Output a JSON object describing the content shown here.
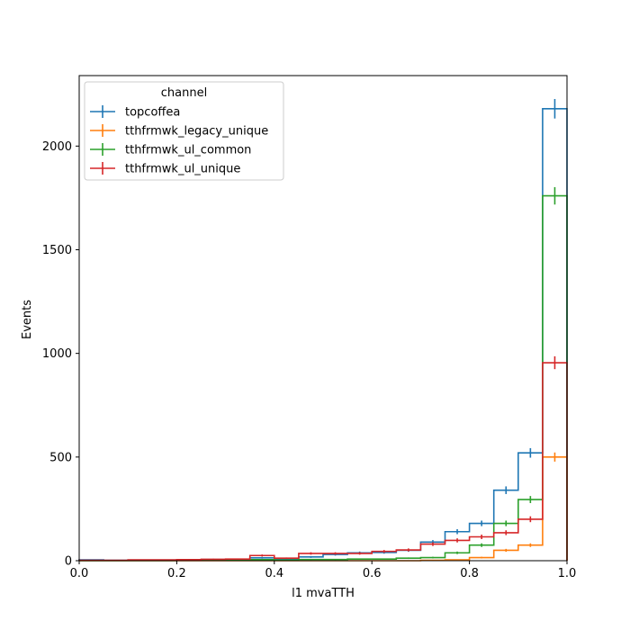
{
  "chart_data": {
    "type": "line",
    "title": "",
    "xlabel": "l1 mvaTTH",
    "ylabel": "Events",
    "xlim": [
      0,
      1.0
    ],
    "ylim": [
      0,
      2340
    ],
    "xticks": [
      "0.0",
      "0.2",
      "0.4",
      "0.6",
      "0.8",
      "1.0"
    ],
    "yticks": [
      "0",
      "500",
      "1000",
      "1500",
      "2000"
    ],
    "legend": {
      "title": "channel",
      "placement": "top-left"
    },
    "bin_edges": [
      0.0,
      0.05,
      0.1,
      0.15,
      0.2,
      0.25,
      0.3,
      0.35,
      0.4,
      0.45,
      0.5,
      0.55,
      0.6,
      0.65,
      0.7,
      0.75,
      0.8,
      0.85,
      0.9,
      0.95,
      1.0
    ],
    "series": [
      {
        "name": "topcoffea",
        "color": "#1f77b4",
        "values": [
          4,
          2,
          3,
          3,
          5,
          6,
          6,
          14,
          8,
          18,
          30,
          38,
          40,
          50,
          90,
          140,
          180,
          340,
          520,
          2180
        ],
        "errors": [
          2,
          1.5,
          1.8,
          1.8,
          2.2,
          2.5,
          2.5,
          4,
          3,
          4.3,
          5.5,
          6.2,
          6.3,
          7,
          9.5,
          12,
          13.4,
          18.5,
          23,
          47
        ]
      },
      {
        "name": "tthfrmwk_legacy_unique",
        "color": "#ff7f0e",
        "values": [
          0,
          0,
          0,
          0,
          0,
          0,
          0,
          0,
          0,
          0,
          0,
          0,
          0,
          0,
          2,
          4,
          15,
          50,
          75,
          500
        ],
        "errors": [
          0,
          0,
          0,
          0,
          0,
          0,
          0,
          0,
          0,
          0,
          0,
          0,
          0,
          0,
          1.4,
          2,
          3.9,
          7,
          8.7,
          22
        ]
      },
      {
        "name": "tthfrmwk_ul_common",
        "color": "#2ca02c",
        "values": [
          1,
          1,
          1,
          1,
          2,
          2,
          2,
          5,
          3,
          6,
          6,
          8,
          8,
          12,
          15,
          38,
          75,
          180,
          295,
          1760
        ],
        "errors": [
          1,
          1,
          1,
          1,
          1.4,
          1.4,
          1.4,
          2.2,
          1.7,
          2.4,
          2.4,
          2.8,
          2.8,
          3.5,
          3.9,
          6.2,
          8.7,
          13.4,
          17,
          42
        ]
      },
      {
        "name": "tthfrmwk_ul_unique",
        "color": "#d62728",
        "values": [
          2,
          2,
          4,
          4,
          5,
          7,
          8,
          25,
          12,
          35,
          35,
          35,
          45,
          52,
          80,
          98,
          115,
          135,
          200,
          955
        ],
        "errors": [
          1.4,
          1.4,
          2,
          2,
          2.2,
          2.6,
          2.8,
          5,
          3.5,
          5.9,
          5.9,
          5.9,
          6.7,
          7.2,
          8.9,
          9.9,
          10.7,
          11.6,
          14.1,
          31
        ]
      }
    ]
  }
}
